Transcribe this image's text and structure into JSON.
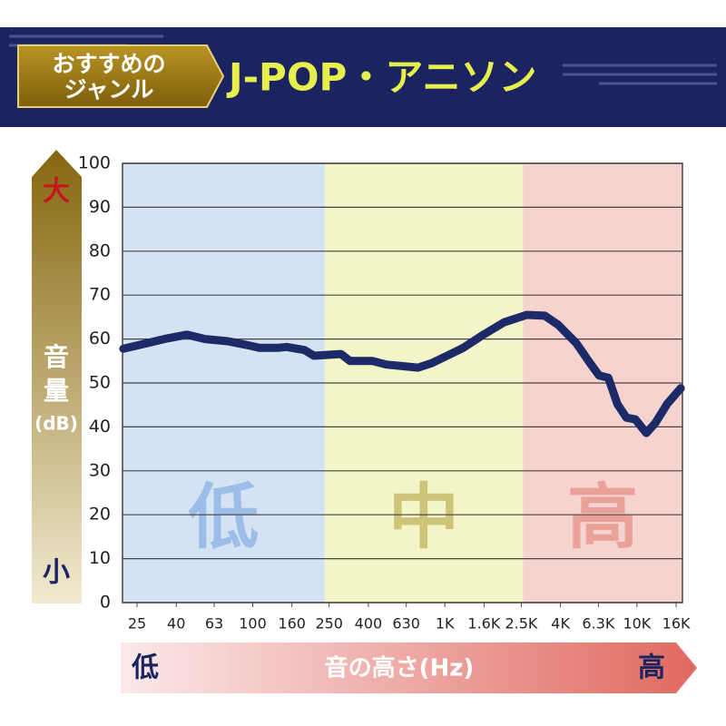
{
  "header": {
    "badge": [
      "おすすめの",
      "ジャンル"
    ],
    "title": "J-POP・アニソン"
  },
  "chart_data": {
    "type": "line",
    "ylabel": [
      "音",
      "量",
      "(dB)"
    ],
    "ylabel_top": "大",
    "ylabel_bottom": "小",
    "xlabel": "音の高さ(Hz)",
    "xlabel_left": "低",
    "xlabel_right": "高",
    "xscale": "log",
    "xlim": [
      21,
      17250
    ],
    "ylim": [
      0,
      100
    ],
    "yticks": [
      0,
      10,
      20,
      30,
      40,
      50,
      60,
      70,
      80,
      90,
      100
    ],
    "xticks": [
      25,
      40,
      63,
      100,
      160,
      250,
      400,
      630,
      {
        "value": 1000,
        "label": "1K"
      },
      {
        "value": 1600,
        "label": "1.6K"
      },
      {
        "value": 2500,
        "label": "2.5K"
      },
      {
        "value": 4000,
        "label": "4K"
      },
      {
        "value": 6300,
        "label": "6.3K"
      },
      {
        "value": 10000,
        "label": "10K"
      },
      {
        "value": 16000,
        "label": "16K"
      }
    ],
    "grid": true,
    "bands": [
      {
        "label": "低",
        "from": 21,
        "to": 237,
        "color": "#d3e3f4",
        "label_color": "#9bbde8"
      },
      {
        "label": "中",
        "from": 237,
        "to": 2550,
        "color": "#f3f5c8",
        "label_color": "#cdc47a"
      },
      {
        "label": "高",
        "from": 2550,
        "to": 17250,
        "color": "#f5d3cf",
        "label_color": "#e9a198"
      }
    ],
    "x": [
      21.2,
      27.9,
      34.6,
      45.4,
      56.5,
      74,
      92,
      108,
      135,
      150,
      186,
      208,
      288,
      321,
      421,
      495,
      725,
      853,
      1005,
      1247,
      1549,
      2032,
      2667,
      3311,
      3899,
      4842,
      5702,
      6353,
      7096,
      7907,
      8810,
      9817,
      11194,
      12474,
      14355,
      16904
    ],
    "series": [
      {
        "color": "#1c2a68",
        "values": [
          57.8,
          59,
          60,
          61,
          60,
          59.5,
          58.7,
          58,
          58,
          58.2,
          57.5,
          56.2,
          56.6,
          55,
          55,
          54.2,
          53.5,
          54.5,
          56,
          58,
          60.7,
          63.8,
          65.5,
          65.3,
          63.2,
          59,
          54.5,
          51.7,
          51.2,
          45.2,
          42.1,
          41.7,
          38.6,
          40.9,
          45.2,
          48.8
        ]
      }
    ]
  }
}
